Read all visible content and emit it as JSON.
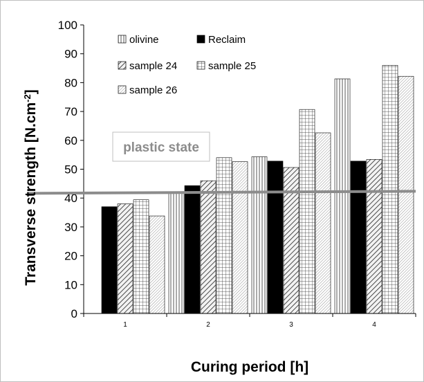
{
  "chart_data": {
    "type": "bar",
    "title": "",
    "xlabel": "Curing period [h]",
    "ylabel": "Transverse  strength  [N.cm",
    "ylabel_sup": "-2",
    "ylabel_end": "]",
    "categories": [
      "1",
      "2",
      "3",
      "4"
    ],
    "ylim": [
      0,
      100
    ],
    "yticks": [
      "0",
      "10",
      "20",
      "30",
      "40",
      "50",
      "60",
      "70",
      "80",
      "90",
      "100"
    ],
    "grid": false,
    "legend_position": "top-left",
    "series": [
      {
        "name": "olivine",
        "values": [
          0,
          42,
          54.3,
          81.3
        ],
        "pattern": "vertical-lines"
      },
      {
        "name": "Reclaim",
        "values": [
          37,
          44.3,
          52.8,
          52.8
        ],
        "pattern": "solid-black"
      },
      {
        "name": "sample 24",
        "values": [
          38,
          46,
          50.6,
          53.4
        ],
        "pattern": "diagonal-lines"
      },
      {
        "name": "sample 25",
        "values": [
          39.4,
          54,
          70.7,
          86
        ],
        "pattern": "grid"
      },
      {
        "name": "sample 26",
        "values": [
          33.8,
          52.6,
          62.6,
          82.2
        ],
        "pattern": "dense-diagonal"
      }
    ],
    "threshold_line": {
      "value": 42,
      "color": "#8c8c8c"
    },
    "annotation": {
      "text": "plastic state"
    }
  }
}
